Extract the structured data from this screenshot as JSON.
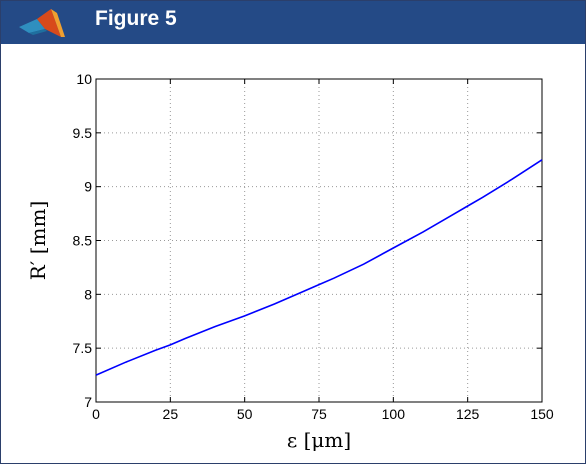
{
  "window": {
    "title": "Figure 5",
    "icon": "matlab-logo-icon"
  },
  "colors": {
    "titlebar": "#244a86",
    "title_text": "#ffffff",
    "line": "#0000ff",
    "grid": "#9a9a9a"
  },
  "chart_data": {
    "type": "line",
    "title": "",
    "xlabel": "ε [μm]",
    "ylabel": "R′ [mm]",
    "xlim": [
      0,
      150
    ],
    "ylim": [
      7,
      10
    ],
    "xticks": [
      0,
      25,
      50,
      75,
      100,
      125,
      150
    ],
    "yticks": [
      7,
      7.5,
      8,
      8.5,
      9,
      9.5,
      10
    ],
    "xtick_labels": [
      "0",
      "25",
      "50",
      "75",
      "100",
      "125",
      "150"
    ],
    "ytick_labels": [
      "7",
      "7.5",
      "8",
      "8.5",
      "9",
      "9.5",
      "10"
    ],
    "grid": true,
    "legend": "none",
    "series": [
      {
        "x": [
          0,
          10,
          20,
          25,
          30,
          40,
          50,
          60,
          70,
          75,
          80,
          90,
          100,
          110,
          120,
          125,
          130,
          140,
          150
        ],
        "y": [
          7.25,
          7.37,
          7.48,
          7.53,
          7.59,
          7.7,
          7.8,
          7.91,
          8.03,
          8.09,
          8.15,
          8.28,
          8.43,
          8.58,
          8.74,
          8.82,
          8.9,
          9.07,
          9.25
        ]
      }
    ]
  }
}
